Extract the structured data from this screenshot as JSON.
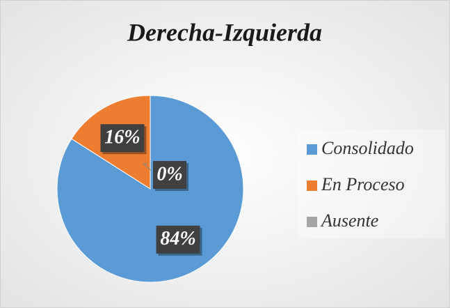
{
  "chart_data": {
    "type": "pie",
    "title": "Derecha-Izquierda",
    "categories": [
      "Consolidado",
      "En Proceso",
      "Ausente"
    ],
    "values": [
      84,
      16,
      0
    ],
    "value_labels": [
      "84%",
      "16%",
      "0%"
    ],
    "colors": [
      "#5b9bd5",
      "#ed7d31",
      "#a5a5a5"
    ],
    "legend": "right"
  }
}
